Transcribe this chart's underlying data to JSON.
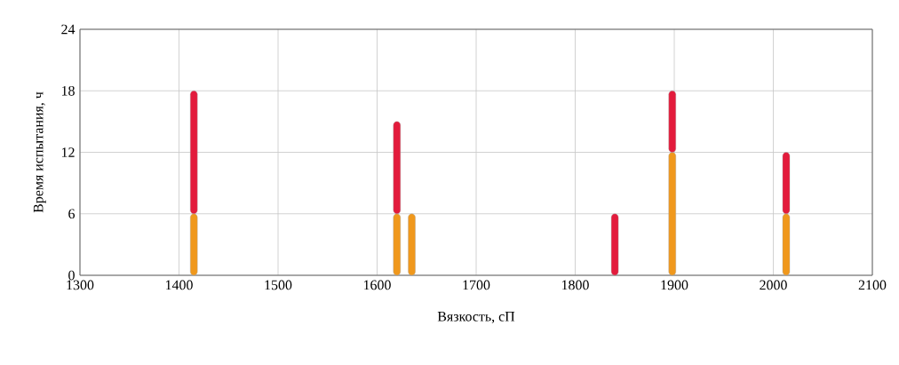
{
  "chart_data": {
    "type": "bar",
    "stacked": true,
    "xlabel": "Вязкость, сП",
    "ylabel": "Время испытания, ч",
    "x": [
      1415,
      1620,
      1635,
      1840,
      1898,
      2013
    ],
    "series": [
      {
        "color": "#f0981c",
        "values": [
          6,
          6,
          6,
          null,
          12,
          6
        ]
      },
      {
        "color": "#e31b3c",
        "values": [
          12,
          9,
          null,
          6,
          6,
          6
        ]
      }
    ],
    "xlim": [
      1300,
      2100
    ],
    "xticks": [
      1300,
      1400,
      1500,
      1600,
      1700,
      1800,
      1900,
      2000,
      2100
    ],
    "ylim": [
      0,
      24
    ],
    "yticks": [
      0,
      6,
      12,
      18,
      24
    ],
    "grid": true
  }
}
